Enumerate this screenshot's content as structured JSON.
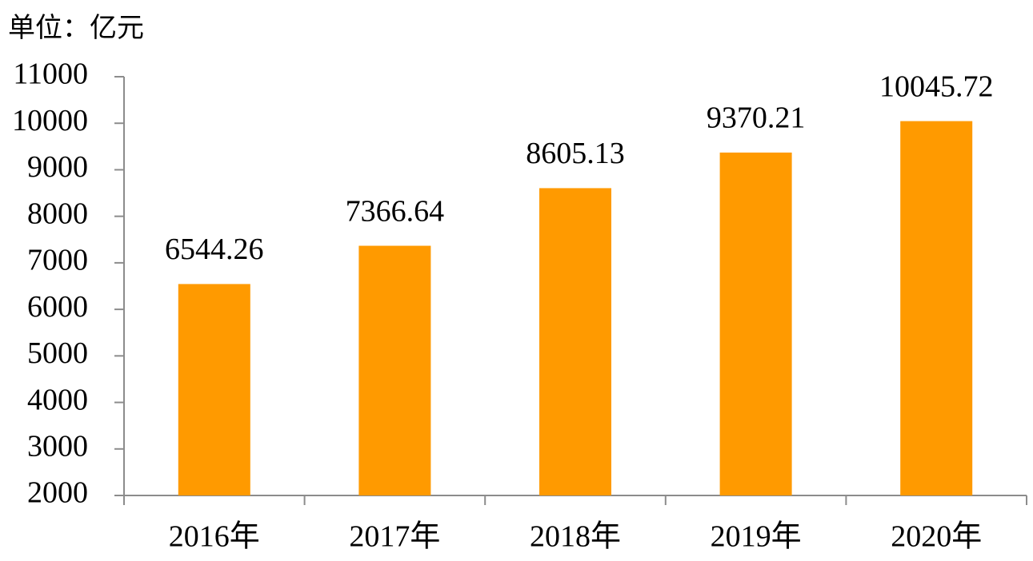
{
  "chart_data": {
    "type": "bar",
    "unit_label": "单位：亿元",
    "categories": [
      "2016年",
      "2017年",
      "2018年",
      "2019年",
      "2020年"
    ],
    "values": [
      6544.26,
      7366.64,
      8605.13,
      9370.21,
      10045.72
    ],
    "color": "#ff9a00",
    "ylim": [
      2000,
      11000
    ],
    "yticks": [
      2000,
      3000,
      4000,
      5000,
      6000,
      7000,
      8000,
      9000,
      10000,
      11000
    ],
    "grid": false
  }
}
